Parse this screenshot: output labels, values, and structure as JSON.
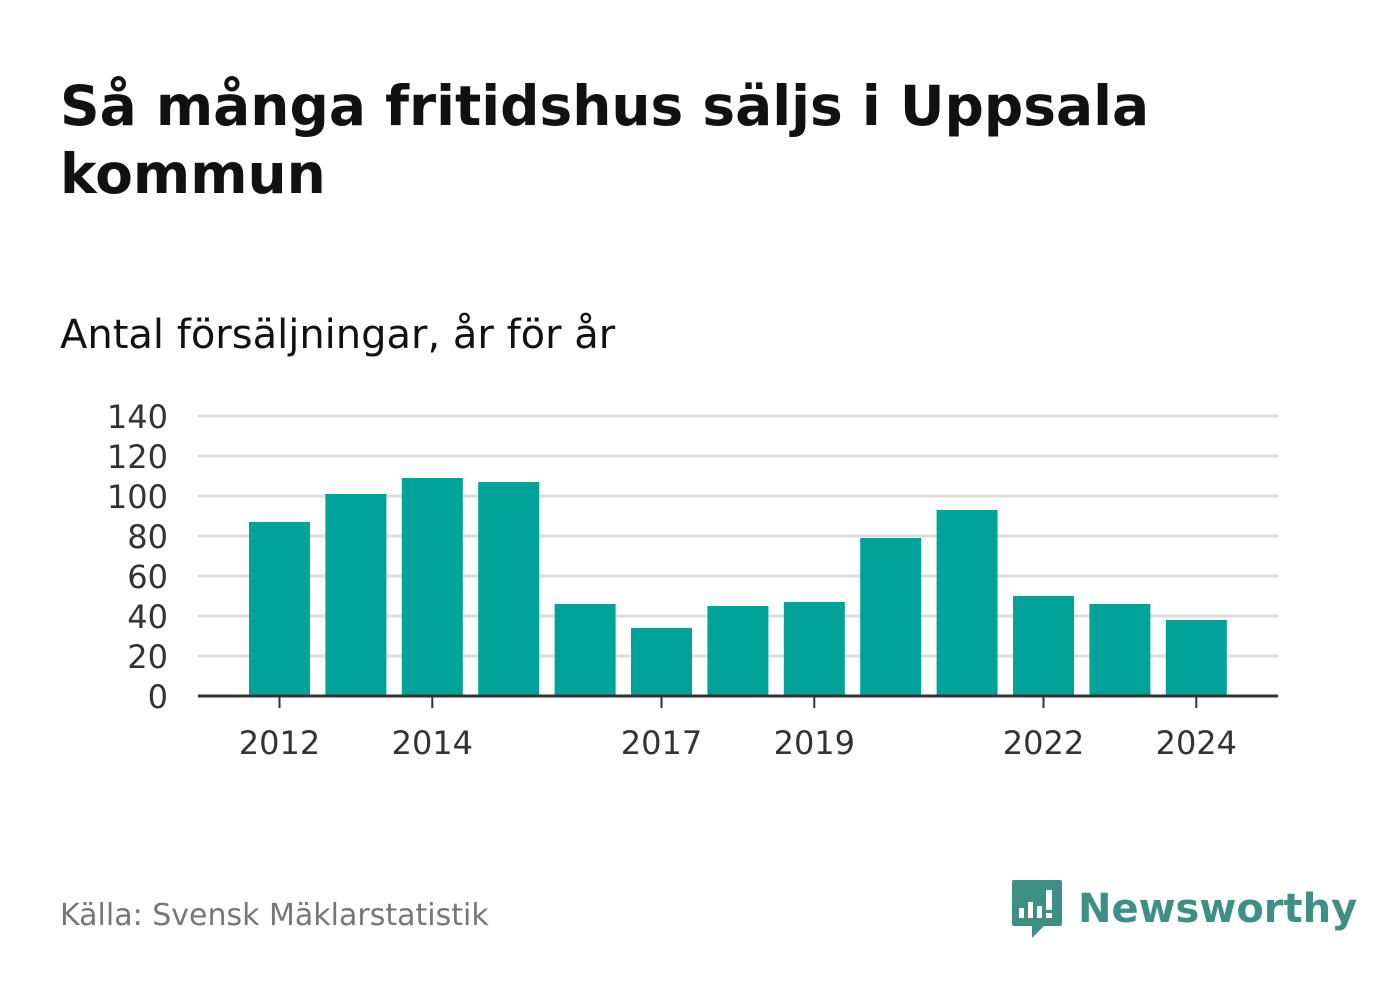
{
  "title": "Så många fritidshus säljs i Uppsala kommun",
  "subtitle": "Antal försäljningar, år för år",
  "source": "Källa: Svensk Mäklarstatistik",
  "brand": {
    "name": "Newsworthy",
    "icon": "newsworthy-bar-chart-icon",
    "color": "#3e8f86"
  },
  "colors": {
    "bar": "#00a39a",
    "grid": "#dddddd",
    "axis": "#333333"
  },
  "chart_data": {
    "type": "bar",
    "x": [
      2012,
      2013,
      2014,
      2015,
      2016,
      2017,
      2018,
      2019,
      2020,
      2021,
      2022,
      2023,
      2024
    ],
    "values": [
      87,
      101,
      109,
      107,
      46,
      34,
      45,
      47,
      79,
      93,
      50,
      46,
      38
    ],
    "xticks": [
      "2012",
      "2014",
      "2017",
      "2019",
      "2022",
      "2024"
    ],
    "yticks": [
      0,
      20,
      40,
      60,
      80,
      100,
      120,
      140
    ],
    "ylim": [
      0,
      140
    ],
    "grid": true,
    "legend": "none"
  }
}
